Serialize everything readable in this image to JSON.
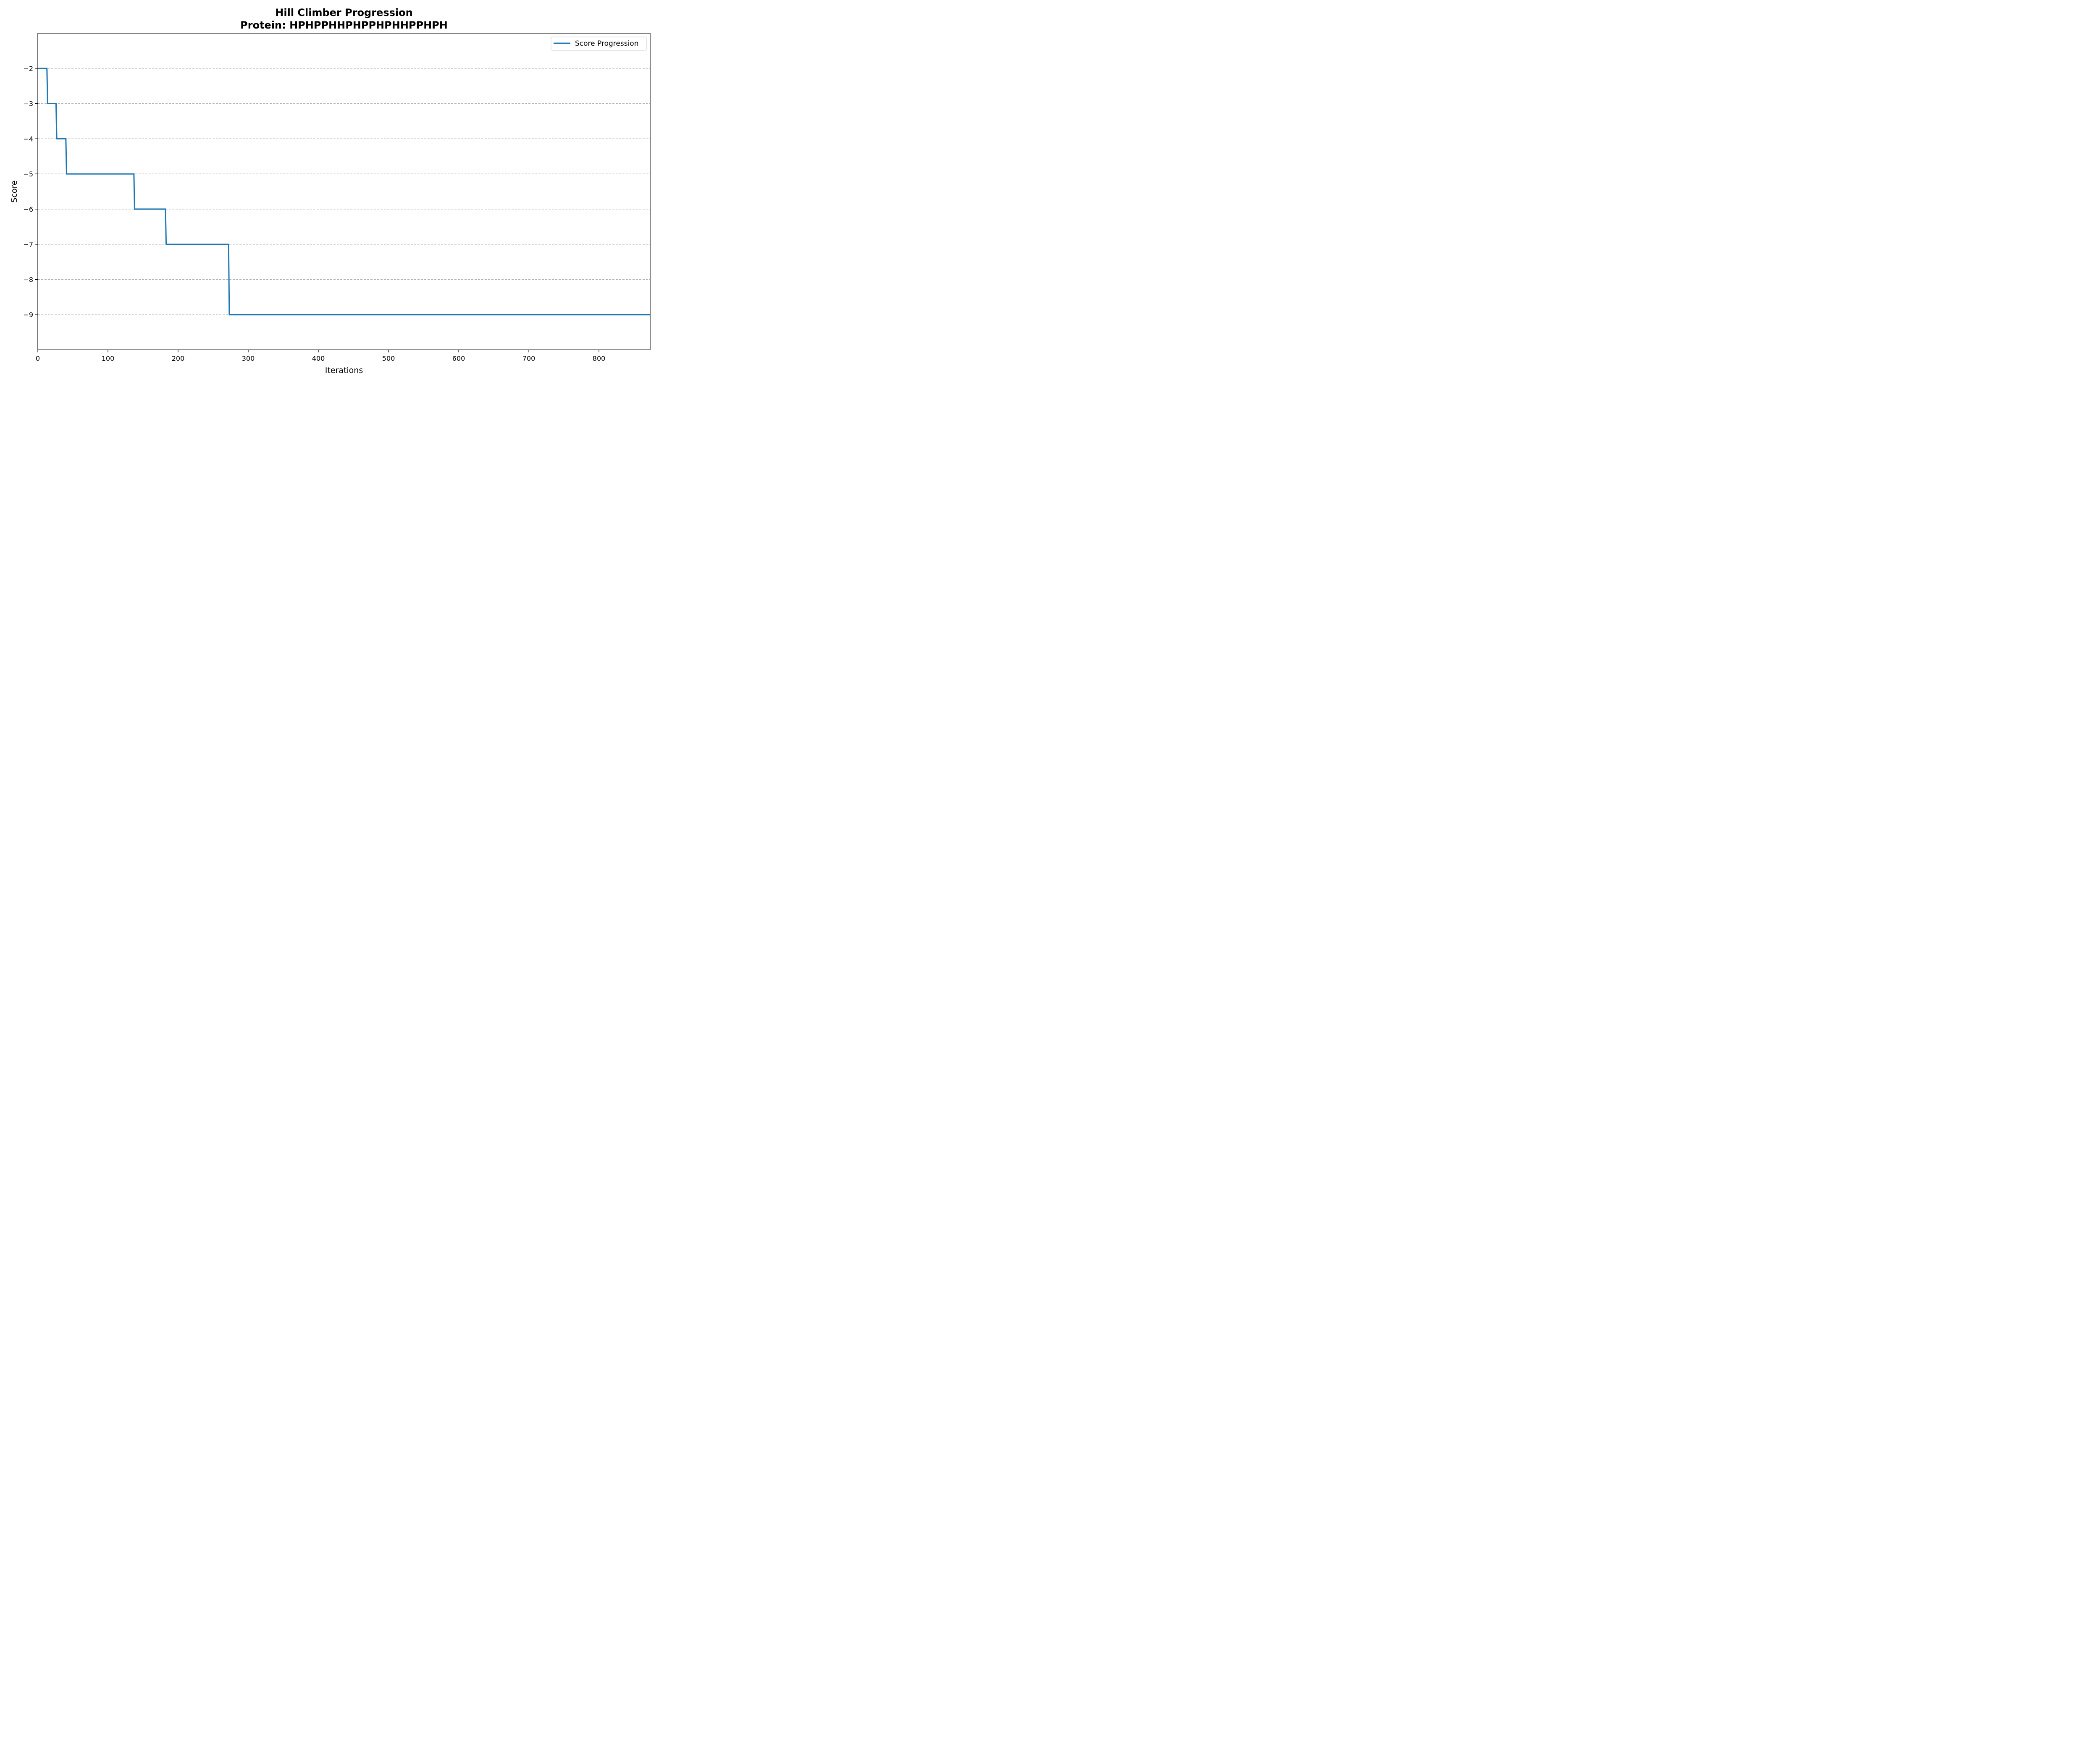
{
  "chart_data": {
    "type": "line",
    "title": "Hill Climber Progression",
    "subtitle": "Protein: HPHPPHHPHPPHPHHPPHPH",
    "xlabel": "Iterations",
    "ylabel": "Score",
    "xlim": [
      0,
      873
    ],
    "ylim": [
      -10,
      -1
    ],
    "xticks": [
      0,
      100,
      200,
      300,
      400,
      500,
      600,
      700,
      800
    ],
    "yticks": [
      -2,
      -3,
      -4,
      -5,
      -6,
      -7,
      -8,
      -9
    ],
    "ytick_labels": [
      "−2",
      "−3",
      "−4",
      "−5",
      "−6",
      "−7",
      "−8",
      "−9"
    ],
    "grid": "horizontal dashed",
    "legend_position": "top-right",
    "series": [
      {
        "name": "Score Progression",
        "color": "#1f77b4",
        "x": [
          0,
          13,
          14,
          26,
          27,
          40,
          41,
          137,
          138,
          182,
          183,
          272,
          273,
          873
        ],
        "y": [
          -2,
          -2,
          -3,
          -3,
          -4,
          -4,
          -5,
          -5,
          -6,
          -6,
          -7,
          -7,
          -9,
          -9
        ]
      }
    ]
  }
}
